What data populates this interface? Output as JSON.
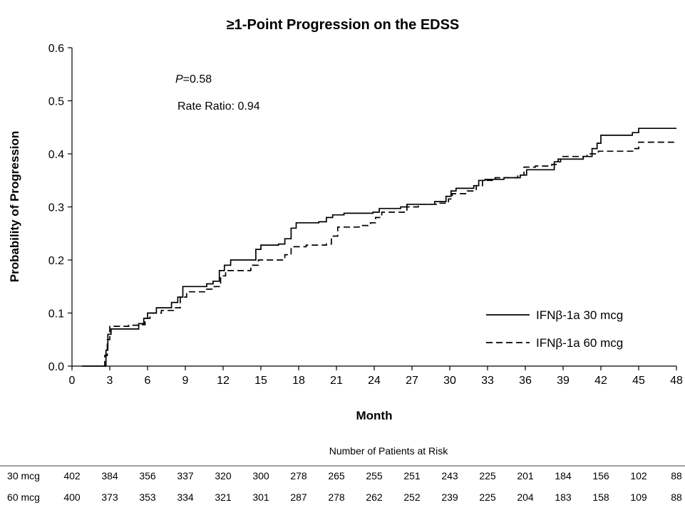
{
  "chart_data": {
    "type": "line",
    "title": "≥1-Point Progression on the EDSS",
    "xlabel": "Month",
    "ylabel": "Probability of Progression",
    "xlim": [
      0,
      48
    ],
    "ylim": [
      0,
      0.6
    ],
    "x_ticks": [
      0,
      3,
      6,
      9,
      12,
      15,
      18,
      21,
      24,
      27,
      30,
      33,
      36,
      39,
      42,
      45,
      48
    ],
    "y_ticks": [
      "0.0",
      "0.1",
      "0.2",
      "0.3",
      "0.4",
      "0.5",
      "0.6"
    ],
    "grid": false,
    "annotations": {
      "p_label": "P",
      "p_value": "=0.58",
      "rate_ratio": "Rate Ratio: 0.94"
    },
    "legend_position": "lower-right",
    "series": [
      {
        "name": "IFNβ-1a 30 mcg",
        "style": "solid",
        "points": [
          [
            0.8,
            0.0
          ],
          [
            2.6,
            0.0
          ],
          [
            2.7,
            0.03
          ],
          [
            2.85,
            0.06
          ],
          [
            3.1,
            0.07
          ],
          [
            4.5,
            0.07
          ],
          [
            5.3,
            0.08
          ],
          [
            5.7,
            0.09
          ],
          [
            6.0,
            0.1
          ],
          [
            6.7,
            0.11
          ],
          [
            7.9,
            0.12
          ],
          [
            8.4,
            0.13
          ],
          [
            8.8,
            0.15
          ],
          [
            9.8,
            0.15
          ],
          [
            10.7,
            0.155
          ],
          [
            11.2,
            0.16
          ],
          [
            11.7,
            0.18
          ],
          [
            12.1,
            0.19
          ],
          [
            12.6,
            0.2
          ],
          [
            14.2,
            0.2
          ],
          [
            14.6,
            0.22
          ],
          [
            15.0,
            0.228
          ],
          [
            16.4,
            0.23
          ],
          [
            16.9,
            0.24
          ],
          [
            17.4,
            0.26
          ],
          [
            17.8,
            0.27
          ],
          [
            19.6,
            0.272
          ],
          [
            20.2,
            0.28
          ],
          [
            20.7,
            0.285
          ],
          [
            21.6,
            0.288
          ],
          [
            23.9,
            0.29
          ],
          [
            24.4,
            0.297
          ],
          [
            26.1,
            0.3
          ],
          [
            26.6,
            0.305
          ],
          [
            28.8,
            0.31
          ],
          [
            29.7,
            0.32
          ],
          [
            30.1,
            0.33
          ],
          [
            30.5,
            0.335
          ],
          [
            31.9,
            0.34
          ],
          [
            32.3,
            0.35
          ],
          [
            32.8,
            0.352
          ],
          [
            34.3,
            0.355
          ],
          [
            35.6,
            0.36
          ],
          [
            36.1,
            0.37
          ],
          [
            37.8,
            0.37
          ],
          [
            38.3,
            0.385
          ],
          [
            38.8,
            0.39
          ],
          [
            40.6,
            0.395
          ],
          [
            41.3,
            0.41
          ],
          [
            41.7,
            0.42
          ],
          [
            42.0,
            0.435
          ],
          [
            44.0,
            0.435
          ],
          [
            44.5,
            0.44
          ],
          [
            45.0,
            0.448
          ],
          [
            48.0,
            0.448
          ]
        ]
      },
      {
        "name": "IFNβ-1a 60 mcg",
        "style": "dashed",
        "points": [
          [
            2.5,
            0.0
          ],
          [
            2.6,
            0.02
          ],
          [
            2.8,
            0.05
          ],
          [
            3.0,
            0.075
          ],
          [
            4.5,
            0.077
          ],
          [
            5.3,
            0.078
          ],
          [
            5.8,
            0.09
          ],
          [
            6.2,
            0.1
          ],
          [
            7.1,
            0.105
          ],
          [
            8.1,
            0.11
          ],
          [
            8.6,
            0.13
          ],
          [
            9.1,
            0.14
          ],
          [
            10.6,
            0.145
          ],
          [
            11.3,
            0.15
          ],
          [
            11.8,
            0.17
          ],
          [
            12.2,
            0.18
          ],
          [
            13.6,
            0.18
          ],
          [
            14.2,
            0.19
          ],
          [
            14.8,
            0.2
          ],
          [
            16.6,
            0.2
          ],
          [
            16.9,
            0.21
          ],
          [
            17.4,
            0.225
          ],
          [
            18.6,
            0.228
          ],
          [
            20.2,
            0.23
          ],
          [
            20.6,
            0.245
          ],
          [
            21.1,
            0.262
          ],
          [
            22.8,
            0.265
          ],
          [
            23.7,
            0.27
          ],
          [
            24.1,
            0.28
          ],
          [
            24.6,
            0.29
          ],
          [
            26.1,
            0.29
          ],
          [
            26.6,
            0.3
          ],
          [
            27.5,
            0.305
          ],
          [
            29.1,
            0.307
          ],
          [
            29.9,
            0.315
          ],
          [
            30.2,
            0.325
          ],
          [
            31.4,
            0.33
          ],
          [
            32.1,
            0.34
          ],
          [
            32.6,
            0.35
          ],
          [
            33.6,
            0.355
          ],
          [
            35.4,
            0.36
          ],
          [
            35.9,
            0.375
          ],
          [
            36.8,
            0.377
          ],
          [
            38.1,
            0.38
          ],
          [
            38.6,
            0.39
          ],
          [
            38.9,
            0.395
          ],
          [
            40.9,
            0.4
          ],
          [
            41.8,
            0.405
          ],
          [
            44.1,
            0.405
          ],
          [
            44.6,
            0.41
          ],
          [
            45.0,
            0.422
          ],
          [
            48.0,
            0.422
          ]
        ]
      }
    ],
    "risk_table": {
      "header": "Number of Patients at Risk",
      "rows": [
        {
          "label": "30 mcg",
          "values": [
            402,
            384,
            356,
            337,
            320,
            300,
            278,
            265,
            255,
            251,
            243,
            225,
            201,
            184,
            156,
            102,
            88
          ]
        },
        {
          "label": "60 mcg",
          "values": [
            400,
            373,
            353,
            334,
            321,
            301,
            287,
            278,
            262,
            252,
            239,
            225,
            204,
            183,
            158,
            109,
            88
          ]
        }
      ]
    }
  }
}
